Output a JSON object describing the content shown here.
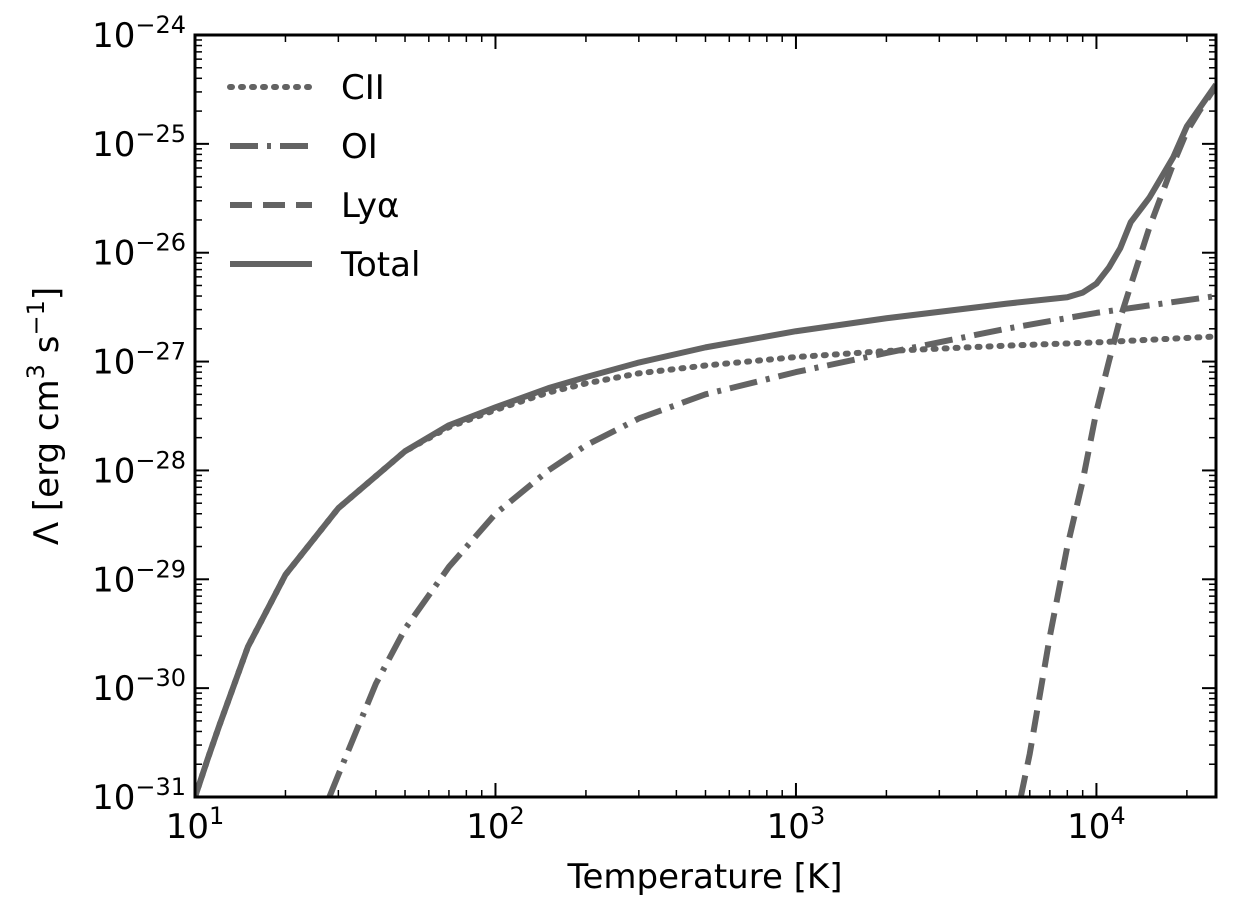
{
  "chart_data": {
    "type": "line",
    "title": "",
    "xlabel": "Temperature [K]",
    "ylabel": "Λ [erg cm",
    "ylabel_sup1": "3",
    "ylabel_mid": " s",
    "ylabel_sup2": "−1",
    "ylabel_end": "]",
    "x_scale": "log",
    "y_scale": "log",
    "xlim": [
      10,
      25000
    ],
    "ylim": [
      1e-31,
      1e-24
    ],
    "grid": false,
    "legend_position": "top-left",
    "x_ticks": [
      {
        "value": 10,
        "base": "10",
        "exp": "1"
      },
      {
        "value": 100,
        "base": "10",
        "exp": "2"
      },
      {
        "value": 1000,
        "base": "10",
        "exp": "3"
      },
      {
        "value": 10000,
        "base": "10",
        "exp": "4"
      }
    ],
    "y_ticks": [
      {
        "value": 1e-31,
        "base": "10",
        "exp": "−31"
      },
      {
        "value": 1e-30,
        "base": "10",
        "exp": "−30"
      },
      {
        "value": 1e-29,
        "base": "10",
        "exp": "−29"
      },
      {
        "value": 1e-28,
        "base": "10",
        "exp": "−28"
      },
      {
        "value": 1e-27,
        "base": "10",
        "exp": "−27"
      },
      {
        "value": 1e-26,
        "base": "10",
        "exp": "−26"
      },
      {
        "value": 1e-25,
        "base": "10",
        "exp": "−25"
      },
      {
        "value": 1e-24,
        "base": "10",
        "exp": "−24"
      }
    ],
    "series": [
      {
        "name": "CII",
        "style": "dotted",
        "color": "#636363",
        "x": [
          10,
          11,
          12,
          15,
          20,
          30,
          50,
          70,
          100,
          150,
          200,
          300,
          500,
          1000,
          2000,
          5000,
          10000,
          25000
        ],
        "y": [
          1e-31,
          2.2e-31,
          4.4e-31,
          2.4e-30,
          1.1e-29,
          4.5e-29,
          1.5e-28,
          2.5e-28,
          3.6e-28,
          5.2e-28,
          6.3e-28,
          7.8e-28,
          9.2e-28,
          1.1e-27,
          1.25e-27,
          1.4e-27,
          1.5e-27,
          1.7e-27
        ]
      },
      {
        "name": "OI",
        "style": "dashdot",
        "color": "#636363",
        "x": [
          28,
          30,
          35,
          40,
          50,
          70,
          100,
          150,
          200,
          300,
          500,
          1000,
          2000,
          5000,
          10000,
          25000
        ],
        "y": [
          1e-31,
          1.6e-31,
          4.5e-31,
          1.1e-30,
          3.5e-30,
          1.3e-29,
          4e-29,
          1e-28,
          1.7e-28,
          3e-28,
          5e-28,
          8e-28,
          1.2e-27,
          2e-27,
          2.8e-27,
          4e-27
        ]
      },
      {
        "name": "Lyα",
        "style": "dashed",
        "color": "#636363",
        "x": [
          5600,
          6000,
          7000,
          8000,
          9000,
          10000,
          11000,
          12000,
          13000,
          15000,
          18000,
          20000,
          22000,
          25000
        ],
        "y": [
          1e-31,
          2.5e-31,
          3e-30,
          2e-29,
          8e-29,
          3.5e-28,
          1e-27,
          2.5e-27,
          5e-27,
          1.7e-26,
          6.5e-26,
          1.3e-25,
          2e-25,
          3.4e-25
        ]
      },
      {
        "name": "Total",
        "style": "solid",
        "color": "#636363",
        "x": [
          10,
          11,
          12,
          15,
          20,
          30,
          50,
          70,
          100,
          150,
          200,
          300,
          500,
          1000,
          2000,
          5000,
          8000,
          9000,
          10000,
          11000,
          12000,
          13000,
          15000,
          18000,
          20000,
          25000
        ],
        "y": [
          1e-31,
          2.2e-31,
          4.4e-31,
          2.4e-30,
          1.1e-29,
          4.5e-29,
          1.5e-28,
          2.6e-28,
          3.8e-28,
          5.7e-28,
          7.2e-28,
          9.8e-28,
          1.35e-27,
          1.9e-27,
          2.5e-27,
          3.4e-27,
          3.9e-27,
          4.3e-27,
          5.2e-27,
          7.3e-27,
          1.1e-26,
          1.9e-26,
          3.2e-26,
          7.5e-26,
          1.45e-25,
          3.5e-25
        ]
      }
    ]
  }
}
